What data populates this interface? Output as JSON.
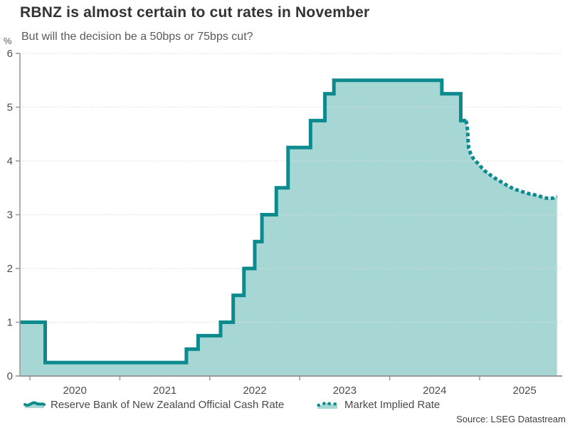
{
  "header": {
    "title": "RBNZ is almost certain to cut rates in November",
    "subtitle": "But will the decision be a 50bps or 75bps cut?"
  },
  "axis": {
    "y_unit": "%",
    "y_ticks": [
      "0",
      "1",
      "2",
      "3",
      "4",
      "5",
      "6"
    ],
    "x_ticks": [
      "2020",
      "2021",
      "2022",
      "2023",
      "2024",
      "2025"
    ]
  },
  "legend": {
    "items": [
      {
        "label": "Reserve Bank of New Zealand Official Cash Rate",
        "style": "solid"
      },
      {
        "label": "Market Implied Rate",
        "style": "dotted"
      }
    ]
  },
  "source": "Source: LSEG Datastream",
  "colors": {
    "line": "#0d8a8e",
    "fill": "#a6d7d5",
    "grid": "#dcdcdc",
    "axis": "#9b9b9b",
    "tick_text": "#4d4d4d"
  },
  "chart_data": {
    "type": "area",
    "title": "RBNZ is almost certain to cut rates in November",
    "subtitle": "But will the decision be a 50bps or 75bps cut?",
    "ylabel": "%",
    "ylim": [
      0,
      6
    ],
    "x_range_years": [
      2019.89,
      2025.86
    ],
    "x_tick_years": [
      2020,
      2021,
      2022,
      2023,
      2024,
      2025
    ],
    "grid": "dotted-horizontal",
    "legend_position": "bottom",
    "series": [
      {
        "name": "Reserve Bank of New Zealand Official Cash Rate",
        "style": "step-solid",
        "points": [
          [
            2019.889,
            1.0
          ],
          [
            2020.17,
            0.25
          ],
          [
            2021.74,
            0.5
          ],
          [
            2021.87,
            0.75
          ],
          [
            2022.12,
            1.0
          ],
          [
            2022.26,
            1.5
          ],
          [
            2022.38,
            2.0
          ],
          [
            2022.5,
            2.5
          ],
          [
            2022.58,
            3.0
          ],
          [
            2022.74,
            3.5
          ],
          [
            2022.87,
            4.25
          ],
          [
            2023.12,
            4.75
          ],
          [
            2023.28,
            5.25
          ],
          [
            2023.38,
            5.5
          ],
          [
            2024.58,
            5.25
          ],
          [
            2024.79,
            4.75
          ],
          [
            2024.85,
            4.75
          ]
        ]
      },
      {
        "name": "Market Implied Rate",
        "style": "dotted-line",
        "points": [
          [
            2024.85,
            4.75
          ],
          [
            2024.866,
            4.57
          ],
          [
            2024.872,
            4.38
          ],
          [
            2024.878,
            4.24
          ],
          [
            2024.905,
            4.11
          ],
          [
            2024.944,
            4.01
          ],
          [
            2024.984,
            3.95
          ],
          [
            2025.02,
            3.88
          ],
          [
            2025.06,
            3.81
          ],
          [
            2025.11,
            3.75
          ],
          [
            2025.17,
            3.68
          ],
          [
            2025.23,
            3.62
          ],
          [
            2025.3,
            3.55
          ],
          [
            2025.38,
            3.48
          ],
          [
            2025.47,
            3.43
          ],
          [
            2025.55,
            3.39
          ],
          [
            2025.64,
            3.36
          ],
          [
            2025.71,
            3.32
          ],
          [
            2025.775,
            3.3
          ],
          [
            2025.82,
            3.31
          ],
          [
            2025.86,
            3.34
          ]
        ]
      }
    ]
  }
}
